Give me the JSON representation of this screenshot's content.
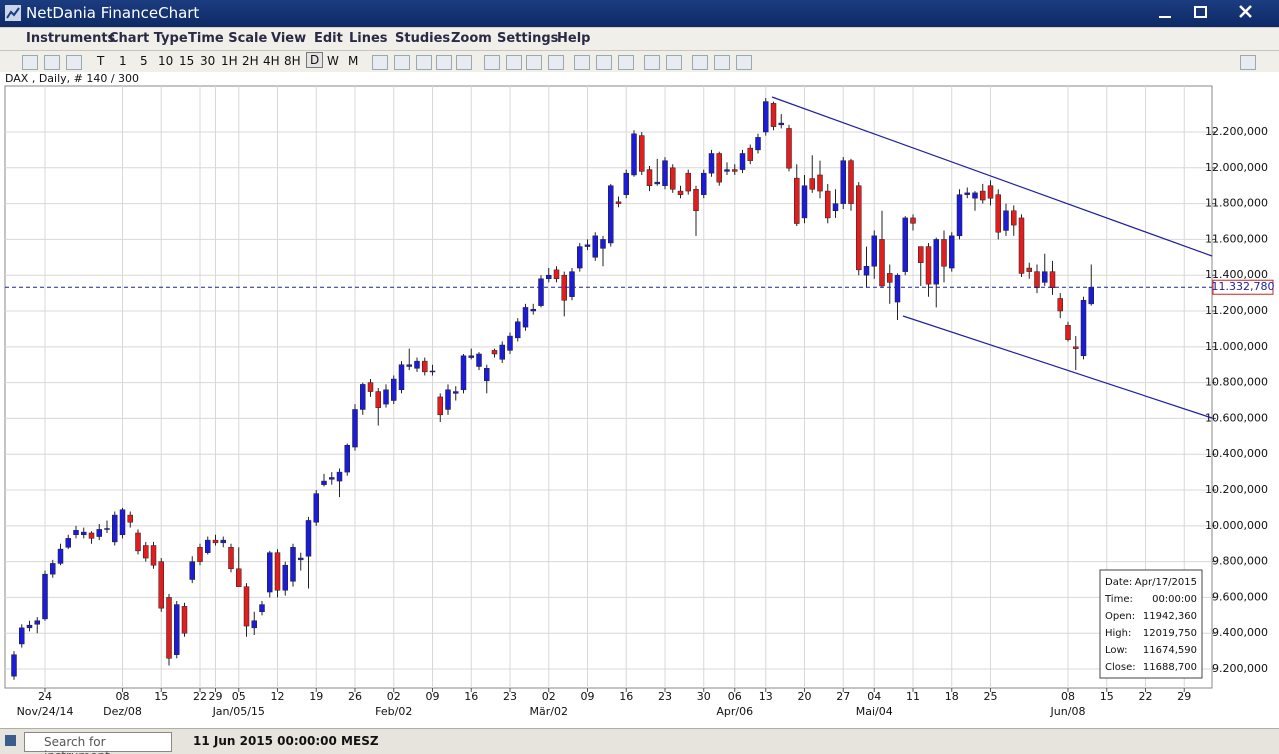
{
  "window": {
    "title": "NetDania FinanceChart"
  },
  "menu": [
    "Instruments",
    "Chart Type",
    "Time Scale",
    "View",
    "Edit",
    "Lines",
    "Studies",
    "Zoom",
    "Settings",
    "Help"
  ],
  "toolbar": {
    "intervals": [
      "T",
      "1",
      "5",
      "10",
      "15",
      "30",
      "1H",
      "2H",
      "4H",
      "8H",
      "D",
      "W",
      "M"
    ]
  },
  "chart_data": {
    "type": "candlestick",
    "title": "DAX , Daily, # 140 / 300",
    "up_color": "#1c1cd6",
    "down_color": "#e01e1e",
    "grid": true,
    "x": [
      "2014-11-18",
      "2014-11-19",
      "2014-11-20",
      "2014-11-21",
      "2014-11-24",
      "2014-11-25",
      "2014-11-26",
      "2014-11-27",
      "2014-11-28",
      "2014-12-01",
      "2014-12-02",
      "2014-12-03",
      "2014-12-04",
      "2014-12-05",
      "2014-12-08",
      "2014-12-09",
      "2014-12-10",
      "2014-12-11",
      "2014-12-12",
      "2014-12-15",
      "2014-12-16",
      "2014-12-17",
      "2014-12-18",
      "2014-12-19",
      "2014-12-22",
      "2014-12-23",
      "2014-12-29",
      "2014-12-30",
      "2015-01-02",
      "2015-01-05",
      "2015-01-06",
      "2015-01-07",
      "2015-01-08",
      "2015-01-09",
      "2015-01-12",
      "2015-01-13",
      "2015-01-14",
      "2015-01-15",
      "2015-01-16",
      "2015-01-19",
      "2015-01-20",
      "2015-01-21",
      "2015-01-22",
      "2015-01-23",
      "2015-01-26",
      "2015-01-27",
      "2015-01-28",
      "2015-01-29",
      "2015-01-30",
      "2015-02-02",
      "2015-02-03",
      "2015-02-04",
      "2015-02-05",
      "2015-02-06",
      "2015-02-09",
      "2015-02-10",
      "2015-02-11",
      "2015-02-12",
      "2015-02-13",
      "2015-02-16",
      "2015-02-17",
      "2015-02-18",
      "2015-02-19",
      "2015-02-20",
      "2015-02-23",
      "2015-02-24",
      "2015-02-25",
      "2015-02-26",
      "2015-02-27",
      "2015-03-02",
      "2015-03-03",
      "2015-03-04",
      "2015-03-05",
      "2015-03-06",
      "2015-03-09",
      "2015-03-10",
      "2015-03-11",
      "2015-03-12",
      "2015-03-13",
      "2015-03-16",
      "2015-03-17",
      "2015-03-18",
      "2015-03-19",
      "2015-03-20",
      "2015-03-23",
      "2015-03-24",
      "2015-03-25",
      "2015-03-26",
      "2015-03-27",
      "2015-03-30",
      "2015-03-31",
      "2015-04-01",
      "2015-04-02",
      "2015-04-07",
      "2015-04-08",
      "2015-04-09",
      "2015-04-10",
      "2015-04-13",
      "2015-04-14",
      "2015-04-15",
      "2015-04-16",
      "2015-04-17",
      "2015-04-20",
      "2015-04-21",
      "2015-04-22",
      "2015-04-23",
      "2015-04-24",
      "2015-04-27",
      "2015-04-28",
      "2015-04-29",
      "2015-04-30",
      "2015-05-04",
      "2015-05-05",
      "2015-05-06",
      "2015-05-07",
      "2015-05-08",
      "2015-05-11",
      "2015-05-12",
      "2015-05-13",
      "2015-05-14",
      "2015-05-15",
      "2015-05-18",
      "2015-05-19",
      "2015-05-20",
      "2015-05-21",
      "2015-05-22",
      "2015-05-25",
      "2015-05-26",
      "2015-05-27",
      "2015-05-28",
      "2015-05-29",
      "2015-06-01",
      "2015-06-02",
      "2015-06-03",
      "2015-06-04",
      "2015-06-05",
      "2015-06-08",
      "2015-06-09",
      "2015-06-10",
      "2015-06-11"
    ],
    "open": [
      9160,
      9340,
      9430,
      9450,
      9480,
      9730,
      9790,
      9880,
      9950,
      9950,
      9960,
      9940,
      9980,
      9910,
      9950,
      10060,
      9960,
      9890,
      9890,
      9800,
      9600,
      9280,
      9550,
      9700,
      9880,
      9850,
      9920,
      9905,
      9880,
      9760,
      9660,
      9430,
      9520,
      9630,
      9850,
      9640,
      9690,
      9810,
      9830,
      10020,
      10230,
      10260,
      10250,
      10300,
      10440,
      10650,
      10800,
      10750,
      10680,
      10700,
      10760,
      10890,
      10880,
      10920,
      10860,
      10720,
      10650,
      10740,
      10760,
      10940,
      10890,
      10810,
      10980,
      10930,
      10980,
      11050,
      11110,
      11200,
      11230,
      11380,
      11430,
      11400,
      11280,
      11440,
      11560,
      11500,
      11550,
      11580,
      11810,
      11850,
      11960,
      12180,
      11990,
      11910,
      11900,
      12000,
      11870,
      11970,
      11880,
      11850,
      11970,
      12080,
      11980,
      11990,
      11990,
      12110,
      12100,
      12200,
      12360,
      12240,
      12220,
      11942.36,
      11720,
      11940,
      11960,
      11870,
      11760,
      11800,
      12040,
      11900,
      11400,
      11450,
      11600,
      11410,
      11250,
      11420,
      11720,
      11560,
      11560,
      11350,
      11600,
      11440,
      11620,
      11850,
      11830,
      11870,
      11900,
      11850,
      11650,
      11760,
      11720,
      11440,
      11420,
      11360,
      11420,
      11270,
      11120,
      11000,
      10950,
      11240
    ],
    "high": [
      9300,
      9450,
      9470,
      9490,
      9750,
      9810,
      9900,
      9950,
      10000,
      9990,
      9970,
      10010,
      10030,
      10080,
      10100,
      10080,
      9980,
      9910,
      9910,
      9820,
      9620,
      9580,
      9570,
      9830,
      9900,
      9940,
      9950,
      9940,
      9900,
      9880,
      9680,
      9520,
      9580,
      9860,
      9870,
      9800,
      9900,
      9850,
      10050,
      10200,
      10290,
      10300,
      10320,
      10460,
      10680,
      10800,
      10820,
      10770,
      10790,
      10840,
      10920,
      10990,
      10940,
      10940,
      10900,
      10740,
      10790,
      10780,
      10960,
      10990,
      10970,
      10900,
      10990,
      11030,
      11080,
      11160,
      11240,
      11240,
      11400,
      11440,
      11450,
      11420,
      11440,
      11580,
      11600,
      11640,
      11620,
      11910,
      11840,
      11990,
      12210,
      12200,
      12010,
      12050,
      12060,
      12020,
      11900,
      11990,
      11900,
      11990,
      12100,
      12090,
      12030,
      12020,
      12100,
      12130,
      12190,
      12390,
      12370,
      12300,
      12240,
      12019.75,
      11960,
      12070,
      12040,
      11910,
      11880,
      12060,
      12050,
      11920,
      11560,
      11650,
      11760,
      11460,
      11410,
      11730,
      11740,
      11560,
      11580,
      11610,
      11650,
      11640,
      11880,
      11890,
      11870,
      11910,
      11930,
      11880,
      11800,
      11790,
      11740,
      11470,
      11460,
      11520,
      11480,
      11300,
      11140,
      11060,
      11280,
      11460
    ],
    "low": [
      9140,
      9320,
      9410,
      9400,
      9470,
      9710,
      9780,
      9870,
      9930,
      9930,
      9900,
      9920,
      9960,
      9890,
      9930,
      9990,
      9840,
      9800,
      9760,
      9520,
      9220,
      9260,
      9380,
      9680,
      9780,
      9840,
      9890,
      9880,
      9740,
      9660,
      9380,
      9390,
      9500,
      9600,
      9600,
      9610,
      9660,
      9750,
      9650,
      10000,
      10220,
      10230,
      10160,
      10280,
      10420,
      10620,
      10720,
      10560,
      10660,
      10680,
      10740,
      10870,
      10860,
      10840,
      10840,
      10580,
      10620,
      10700,
      10740,
      10930,
      10870,
      10740,
      10940,
      10910,
      10960,
      11030,
      11090,
      11180,
      11220,
      11360,
      11360,
      11170,
      11260,
      11420,
      11540,
      11480,
      11450,
      11560,
      11780,
      11830,
      11950,
      11960,
      11870,
      11900,
      11880,
      11860,
      11830,
      11850,
      11620,
      11830,
      11950,
      11900,
      11960,
      11960,
      11970,
      12020,
      12080,
      12180,
      12210,
      12220,
      11980,
      11674.59,
      11690,
      11860,
      11830,
      11690,
      11720,
      11770,
      11760,
      11400,
      11330,
      11380,
      11330,
      11240,
      11150,
      11400,
      11650,
      11340,
      11280,
      11220,
      11360,
      11420,
      11600,
      11830,
      11760,
      11800,
      11790,
      11600,
      11620,
      11620,
      11390,
      11380,
      11300,
      11340,
      11290,
      11160,
      11030,
      10870,
      10930,
      11230
    ],
    "close": [
      9280,
      9430,
      9445,
      9470,
      9730,
      9790,
      9870,
      9930,
      9975,
      9965,
      9930,
      9980,
      9985,
      10060,
      10090,
      10020,
      9860,
      9820,
      9780,
      9540,
      9260,
      9560,
      9400,
      9800,
      9800,
      9920,
      9905,
      9920,
      9760,
      9660,
      9440,
      9470,
      9560,
      9850,
      9640,
      9780,
      9880,
      9820,
      10030,
      10180,
      10250,
      10270,
      10300,
      10450,
      10650,
      10790,
      10750,
      10660,
      10760,
      10820,
      10900,
      10900,
      10920,
      10860,
      10865,
      10620,
      10760,
      10750,
      10950,
      10950,
      10960,
      10880,
      10960,
      11010,
      11060,
      11140,
      11220,
      11210,
      11380,
      11400,
      11380,
      11260,
      11420,
      11560,
      11570,
      11620,
      11600,
      11900,
      11800,
      11970,
      12190,
      11980,
      11900,
      11920,
      12040,
      11880,
      11850,
      11870,
      11760,
      11970,
      12080,
      11920,
      11990,
      11980,
      12080,
      12040,
      12170,
      12370,
      12230,
      12250,
      11998,
      11688.7,
      11900,
      11880,
      11870,
      11720,
      11800,
      12040,
      11800,
      11430,
      11450,
      11620,
      11340,
      11360,
      11400,
      11720,
      11690,
      11470,
      11350,
      11600,
      11450,
      11620,
      11850,
      11860,
      11860,
      11820,
      11830,
      11640,
      11760,
      11680,
      11410,
      11420,
      11330,
      11420,
      11330,
      11200,
      11040,
      10990,
      11260,
      11332.78
    ],
    "ylim": [
      9094,
      12457
    ],
    "yticks": [
      {
        "value": 9200,
        "label": "9.200,000"
      },
      {
        "value": 9400,
        "label": "9.400,000"
      },
      {
        "value": 9600,
        "label": "9.600,000"
      },
      {
        "value": 9800,
        "label": "9.800,000"
      },
      {
        "value": 10000,
        "label": "10.000,000"
      },
      {
        "value": 10200,
        "label": "10.200,000"
      },
      {
        "value": 10400,
        "label": "10.400,000"
      },
      {
        "value": 10600,
        "label": "10.600,000"
      },
      {
        "value": 10800,
        "label": "10.800,000"
      },
      {
        "value": 11000,
        "label": "11.000,000"
      },
      {
        "value": 11200,
        "label": "11.200,000"
      },
      {
        "value": 11400,
        "label": "11.400,000"
      },
      {
        "value": 11600,
        "label": "11.600,000"
      },
      {
        "value": 11800,
        "label": "11.800,000"
      },
      {
        "value": 12000,
        "label": "12.000,000"
      },
      {
        "value": 12200,
        "label": "12.200,000"
      }
    ],
    "xticks": [
      {
        "value": "2014-11-24",
        "label": "24"
      },
      {
        "value": "2014-12-08",
        "label": "08"
      },
      {
        "value": "2014-12-15",
        "label": "15"
      },
      {
        "value": "2014-12-22",
        "label": "22"
      },
      {
        "value": "2014-12-29",
        "label": "29"
      },
      {
        "value": "2015-01-05",
        "label": "05"
      },
      {
        "value": "2015-01-12",
        "label": "12"
      },
      {
        "value": "2015-01-19",
        "label": "19"
      },
      {
        "value": "2015-01-26",
        "label": "26"
      },
      {
        "value": "2015-02-02",
        "label": "02"
      },
      {
        "value": "2015-02-09",
        "label": "09"
      },
      {
        "value": "2015-02-16",
        "label": "16"
      },
      {
        "value": "2015-02-23",
        "label": "23"
      },
      {
        "value": "2015-03-02",
        "label": "02"
      },
      {
        "value": "2015-03-09",
        "label": "09"
      },
      {
        "value": "2015-03-16",
        "label": "16"
      },
      {
        "value": "2015-03-23",
        "label": "23"
      },
      {
        "value": "2015-03-30",
        "label": "30"
      },
      {
        "value": "2015-04-06",
        "label": "06"
      },
      {
        "value": "2015-04-13",
        "label": "13"
      },
      {
        "value": "2015-04-20",
        "label": "20"
      },
      {
        "value": "2015-04-27",
        "label": "27"
      },
      {
        "value": "2015-05-04",
        "label": "04"
      },
      {
        "value": "2015-05-11",
        "label": "11"
      },
      {
        "value": "2015-05-18",
        "label": "18"
      },
      {
        "value": "2015-05-25",
        "label": "25"
      },
      {
        "value": "2015-06-08",
        "label": "08"
      },
      {
        "value": "2015-06-15",
        "label": "15"
      },
      {
        "value": "2015-06-22",
        "label": "22"
      },
      {
        "value": "2015-06-29",
        "label": "29"
      }
    ],
    "xticks_major": [
      {
        "value": "2014-11-24",
        "label": "Nov/24/14"
      },
      {
        "value": "2014-12-08",
        "label": "Dez/08"
      },
      {
        "value": "2015-01-05",
        "label": "Jan/05/15"
      },
      {
        "value": "2015-02-02",
        "label": "Feb/02"
      },
      {
        "value": "2015-03-02",
        "label": "Mär/02"
      },
      {
        "value": "2015-04-06",
        "label": "Apr/06"
      },
      {
        "value": "2015-05-04",
        "label": "Mai/04"
      },
      {
        "value": "2015-06-08",
        "label": "Jun/08"
      }
    ],
    "last_price": {
      "value": 11332.78,
      "label": "11.332,780"
    }
  },
  "info_box": {
    "rows": [
      [
        "Date:",
        "Apr/17/2015"
      ],
      [
        "Time:",
        "00:00:00"
      ],
      [
        "Open:",
        "11942,360"
      ],
      [
        "High:",
        "12019,750"
      ],
      [
        "Low:",
        "11674,590"
      ],
      [
        "Close:",
        "11688,700"
      ]
    ]
  },
  "status": {
    "search_placeholder": "Search for instrument",
    "timestamp": "11 Jun 2015 00:00:00 MESZ"
  }
}
